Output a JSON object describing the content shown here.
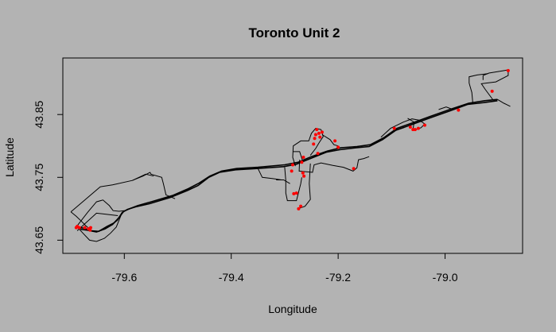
{
  "chart_data": {
    "type": "scatter",
    "title": "Toronto Unit 2",
    "xlabel": "Longitude",
    "ylabel": "Latitude",
    "xlim": [
      -79.715,
      -78.855
    ],
    "ylim": [
      43.629,
      43.94
    ],
    "xticks": [
      {
        "value": -79.6,
        "label": "-79.6"
      },
      {
        "value": -79.4,
        "label": "-79.4"
      },
      {
        "value": -79.2,
        "label": "-79.2"
      },
      {
        "value": -79.0,
        "label": "-79.0"
      }
    ],
    "yticks": [
      {
        "value": 43.65,
        "label": "43.65"
      },
      {
        "value": 43.75,
        "label": "43.75"
      },
      {
        "value": 43.85,
        "label": "43.85"
      }
    ],
    "grid": false,
    "legend": "none",
    "colors": {
      "background": "#b3b3b3",
      "path": "#000000",
      "points": "#ff0000"
    },
    "series": [
      {
        "type": "line",
        "paths": [
          [
            [
              -79.688,
              43.671
            ],
            [
              -79.675,
              43.669
            ],
            [
              -79.662,
              43.665
            ],
            [
              -79.648,
              43.664
            ],
            [
              -79.632,
              43.672
            ],
            [
              -79.62,
              43.677
            ],
            [
              -79.613,
              43.682
            ],
            [
              -79.604,
              43.694
            ],
            [
              -79.594,
              43.699
            ],
            [
              -79.579,
              43.703
            ],
            [
              -79.553,
              43.708
            ],
            [
              -79.514,
              43.718
            ],
            [
              -79.482,
              43.729
            ],
            [
              -79.462,
              43.737
            ],
            [
              -79.442,
              43.75
            ],
            [
              -79.422,
              43.758
            ],
            [
              -79.392,
              43.762
            ],
            [
              -79.352,
              43.764
            ],
            [
              -79.302,
              43.767
            ],
            [
              -79.278,
              43.771
            ],
            [
              -79.252,
              43.78
            ],
            [
              -79.222,
              43.79
            ],
            [
              -79.197,
              43.794
            ],
            [
              -79.167,
              43.797
            ],
            [
              -79.142,
              43.799
            ],
            [
              -79.117,
              43.81
            ],
            [
              -79.092,
              43.825
            ],
            [
              -79.062,
              43.834
            ],
            [
              -79.03,
              43.844
            ],
            [
              -78.99,
              43.856
            ],
            [
              -78.958,
              43.866
            ],
            [
              -78.928,
              43.869
            ],
            [
              -78.902,
              43.872
            ]
          ],
          [
            [
              -79.688,
              43.671
            ],
            [
              -79.68,
              43.667
            ],
            [
              -79.67,
              43.666
            ],
            [
              -79.652,
              43.663
            ],
            [
              -79.636,
              43.668
            ],
            [
              -79.622,
              43.675
            ],
            [
              -79.611,
              43.685
            ],
            [
              -79.601,
              43.696
            ],
            [
              -79.59,
              43.7
            ],
            [
              -79.575,
              43.705
            ],
            [
              -79.55,
              43.711
            ],
            [
              -79.51,
              43.721
            ],
            [
              -79.48,
              43.732
            ],
            [
              -79.46,
              43.741
            ],
            [
              -79.44,
              43.752
            ],
            [
              -79.418,
              43.76
            ],
            [
              -79.39,
              43.764
            ],
            [
              -79.35,
              43.766
            ],
            [
              -79.3,
              43.77
            ],
            [
              -79.275,
              43.774
            ],
            [
              -79.25,
              43.783
            ],
            [
              -79.22,
              43.792
            ],
            [
              -79.195,
              43.797
            ],
            [
              -79.165,
              43.799
            ],
            [
              -79.14,
              43.802
            ],
            [
              -79.115,
              43.813
            ],
            [
              -79.09,
              43.828
            ],
            [
              -79.06,
              43.837
            ],
            [
              -79.028,
              43.847
            ],
            [
              -78.988,
              43.859
            ],
            [
              -78.956,
              43.868
            ],
            [
              -78.926,
              43.872
            ],
            [
              -78.902,
              43.874
            ]
          ],
          [
            [
              -79.688,
              43.671
            ],
            [
              -79.675,
              43.659
            ],
            [
              -79.665,
              43.65
            ],
            [
              -79.652,
              43.648
            ],
            [
              -79.637,
              43.653
            ],
            [
              -79.626,
              43.661
            ],
            [
              -79.615,
              43.671
            ],
            [
              -79.605,
              43.692
            ]
          ],
          [
            [
              -79.69,
              43.671
            ],
            [
              -79.668,
              43.695
            ],
            [
              -79.652,
              43.711
            ],
            [
              -79.64,
              43.714
            ],
            [
              -79.628,
              43.705
            ],
            [
              -79.621,
              43.697
            ],
            [
              -79.61,
              43.696
            ],
            [
              -79.6,
              43.697
            ]
          ],
          [
            [
              -79.688,
              43.665
            ],
            [
              -79.652,
              43.693
            ],
            [
              -79.612,
              43.689
            ]
          ],
          [
            [
              -79.7,
              43.695
            ],
            [
              -79.69,
              43.688
            ],
            [
              -79.68,
              43.68
            ],
            [
              -79.672,
              43.673
            ],
            [
              -79.665,
              43.668
            ]
          ],
          [
            [
              -79.7,
              43.695
            ],
            [
              -79.645,
              43.735
            ],
            [
              -79.622,
              43.738
            ],
            [
              -79.585,
              43.745
            ],
            [
              -79.565,
              43.752
            ],
            [
              -79.552,
              43.758
            ],
            [
              -79.55,
              43.755
            ],
            [
              -79.53,
              43.75
            ],
            [
              -79.527,
              43.74
            ],
            [
              -79.522,
              43.722
            ],
            [
              -79.505,
              43.716
            ]
          ],
          [
            [
              -79.585,
              43.745
            ],
            [
              -79.56,
              43.755
            ],
            [
              -79.545,
              43.752
            ]
          ],
          [
            [
              -79.3,
              43.766
            ],
            [
              -79.298,
              43.745
            ],
            [
              -79.298,
              43.725
            ],
            [
              -79.295,
              43.713
            ],
            [
              -79.278,
              43.713
            ],
            [
              -79.27,
              43.74
            ],
            [
              -79.268,
              43.75
            ]
          ],
          [
            [
              -79.252,
              43.772
            ],
            [
              -79.254,
              43.74
            ],
            [
              -79.252,
              43.715
            ],
            [
              -79.262,
              43.704
            ],
            [
              -79.275,
              43.7
            ]
          ],
          [
            [
              -79.316,
              43.746
            ],
            [
              -79.302,
              43.746
            ],
            [
              -79.29,
              43.74
            ]
          ],
          [
            [
              -79.35,
              43.764
            ],
            [
              -79.342,
              43.75
            ],
            [
              -79.322,
              43.748
            ],
            [
              -79.306,
              43.746
            ]
          ],
          [
            [
              -79.28,
              43.768
            ],
            [
              -79.285,
              43.782
            ],
            [
              -79.284,
              43.8
            ],
            [
              -79.27,
              43.808
            ],
            [
              -79.255,
              43.808
            ],
            [
              -79.25,
              43.82
            ],
            [
              -79.242,
              43.828
            ],
            [
              -79.232,
              43.826
            ],
            [
              -79.228,
              43.815
            ],
            [
              -79.235,
              43.806
            ],
            [
              -79.242,
              43.796
            ],
            [
              -79.252,
              43.785
            ]
          ],
          [
            [
              -79.272,
              43.778
            ],
            [
              -79.273,
              43.76
            ],
            [
              -79.248,
              43.758
            ],
            [
              -79.245,
              43.77
            ],
            [
              -79.232,
              43.773
            ],
            [
              -79.21,
              43.769
            ],
            [
              -79.19,
              43.766
            ],
            [
              -79.172,
              43.76
            ],
            [
              -79.165,
              43.765
            ],
            [
              -79.162,
              43.778
            ],
            [
              -79.152,
              43.78
            ],
            [
              -79.142,
              43.783
            ]
          ],
          [
            [
              -79.285,
              43.791
            ],
            [
              -79.272,
              43.791
            ],
            [
              -79.266,
              43.775
            ]
          ],
          [
            [
              -79.23,
              43.818
            ],
            [
              -79.215,
              43.81
            ],
            [
              -79.208,
              43.802
            ],
            [
              -79.2,
              43.8
            ]
          ],
          [
            [
              -79.12,
              43.814
            ],
            [
              -79.102,
              43.828
            ],
            [
              -79.078,
              43.838
            ],
            [
              -79.062,
              43.843
            ],
            [
              -79.048,
              43.841
            ],
            [
              -79.038,
              43.835
            ],
            [
              -79.045,
              43.829
            ],
            [
              -79.055,
              43.826
            ]
          ],
          [
            [
              -78.985,
              43.858
            ],
            [
              -78.998,
              43.862
            ],
            [
              -79.012,
              43.858
            ]
          ],
          [
            [
              -78.91,
              43.873
            ],
            [
              -78.925,
              43.89
            ],
            [
              -78.932,
              43.899
            ],
            [
              -78.905,
              43.902
            ],
            [
              -78.882,
              43.912
            ],
            [
              -78.882,
              43.921
            ],
            [
              -78.918,
              43.916
            ],
            [
              -78.929,
              43.912
            ],
            [
              -78.929,
              43.905
            ]
          ],
          [
            [
              -78.948,
              43.867
            ],
            [
              -78.95,
              43.885
            ],
            [
              -78.955,
              43.9
            ],
            [
              -78.955,
              43.91
            ],
            [
              -78.94,
              43.913
            ],
            [
              -78.92,
              43.915
            ]
          ],
          [
            [
              -78.902,
              43.874
            ],
            [
              -78.89,
              43.868
            ],
            [
              -78.878,
              43.863
            ]
          ],
          [
            [
              -79.06,
              43.826
            ],
            [
              -79.058,
              43.838
            ],
            [
              -79.07,
              43.844
            ]
          ]
        ]
      },
      {
        "type": "points",
        "points": [
          [
            -79.69,
            43.67
          ],
          [
            -79.688,
            43.672
          ],
          [
            -79.684,
            43.67
          ],
          [
            -79.674,
            43.67
          ],
          [
            -79.667,
            43.668
          ],
          [
            -79.664,
            43.666
          ],
          [
            -79.663,
            43.67
          ],
          [
            -79.287,
            43.76
          ],
          [
            -79.285,
            43.77
          ],
          [
            -79.283,
            43.724
          ],
          [
            -79.278,
            43.725
          ],
          [
            -79.274,
            43.7
          ],
          [
            -79.27,
            43.704
          ],
          [
            -79.266,
            43.757
          ],
          [
            -79.264,
            43.752
          ],
          [
            -79.268,
            43.774
          ],
          [
            -79.265,
            43.782
          ],
          [
            -79.246,
            43.803
          ],
          [
            -79.244,
            43.812
          ],
          [
            -79.242,
            43.818
          ],
          [
            -79.24,
            43.826
          ],
          [
            -79.236,
            43.82
          ],
          [
            -79.234,
            43.814
          ],
          [
            -79.23,
            43.822
          ],
          [
            -79.238,
            43.788
          ],
          [
            -79.206,
            43.808
          ],
          [
            -79.2,
            43.798
          ],
          [
            -79.171,
            43.764
          ],
          [
            -79.095,
            43.828
          ],
          [
            -79.065,
            43.83
          ],
          [
            -79.06,
            43.826
          ],
          [
            -79.056,
            43.826
          ],
          [
            -79.05,
            43.828
          ],
          [
            -79.038,
            43.833
          ],
          [
            -78.975,
            43.857
          ],
          [
            -78.912,
            43.887
          ],
          [
            -78.882,
            43.92
          ]
        ]
      }
    ]
  }
}
